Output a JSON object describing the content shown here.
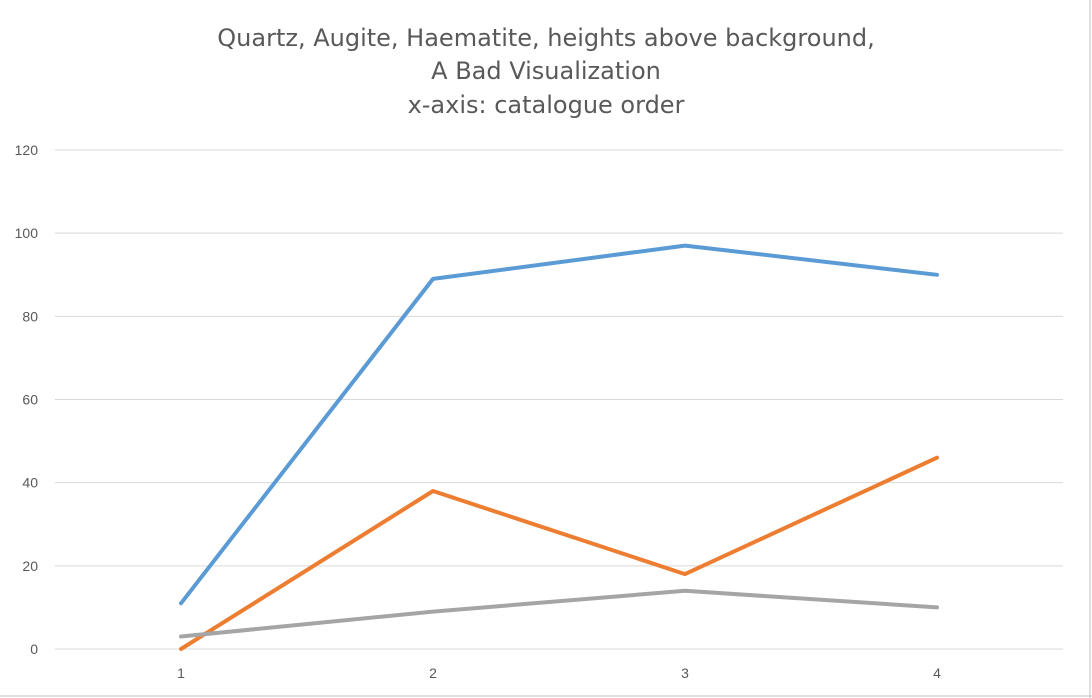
{
  "chart_data": {
    "type": "line",
    "title_lines": [
      "Quartz, Augite, Haematite, heights above background,",
      "A Bad Visualization",
      "x-axis: catalogue order"
    ],
    "xlabel": "",
    "ylabel": "",
    "categories": [
      "1",
      "2",
      "3",
      "4"
    ],
    "yticks": [
      "0",
      "20",
      "40",
      "60",
      "80",
      "100",
      "120"
    ],
    "ylim": [
      0,
      120
    ],
    "grid": true,
    "legend": "none",
    "series": [
      {
        "values": [
          11,
          89,
          97,
          90
        ],
        "color": "#5b9bd5"
      },
      {
        "values": [
          0,
          38,
          18,
          46
        ],
        "color": "#ed7d31"
      },
      {
        "values": [
          3,
          9,
          14,
          10
        ],
        "color": "#a5a5a5"
      }
    ]
  }
}
